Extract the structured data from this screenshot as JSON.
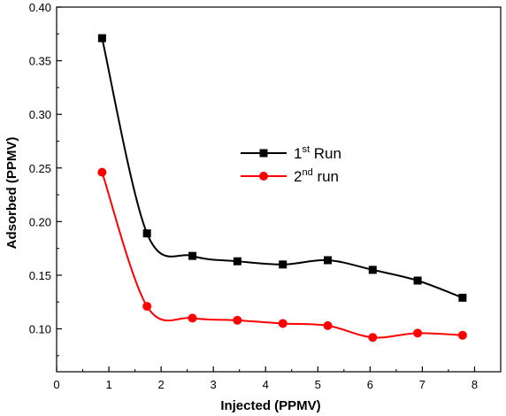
{
  "chart_data": {
    "type": "line",
    "xlabel": "Injected (PPMV)",
    "ylabel": "Adsorbed (PPMV)",
    "xlim": [
      0,
      8.5
    ],
    "ylim": [
      0.06,
      0.4
    ],
    "xticks": [
      0,
      1,
      2,
      3,
      4,
      5,
      6,
      7,
      8
    ],
    "yticks": [
      0.1,
      0.15,
      0.2,
      0.25,
      0.3,
      0.35,
      0.4
    ],
    "ytick_labels": [
      "0.10",
      "0.15",
      "0.20",
      "0.25",
      "0.30",
      "0.35",
      "0.40"
    ],
    "legend_position": "center-right",
    "grid": false,
    "series": [
      {
        "legend_base": "1",
        "legend_sup": "st",
        "legend_suffix": " Run",
        "color": "#000000",
        "marker": "square",
        "x": [
          0.87,
          1.73,
          2.6,
          3.46,
          4.33,
          5.19,
          6.05,
          6.91,
          7.77
        ],
        "y": [
          0.371,
          0.189,
          0.168,
          0.163,
          0.16,
          0.164,
          0.155,
          0.145,
          0.129
        ]
      },
      {
        "legend_base": "2",
        "legend_sup": "nd",
        "legend_suffix": " run",
        "color": "#ff0000",
        "marker": "circle",
        "x": [
          0.87,
          1.73,
          2.6,
          3.46,
          4.33,
          5.19,
          6.05,
          6.91,
          7.77
        ],
        "y": [
          0.246,
          0.121,
          0.11,
          0.108,
          0.105,
          0.103,
          0.092,
          0.096,
          0.094
        ]
      }
    ]
  }
}
